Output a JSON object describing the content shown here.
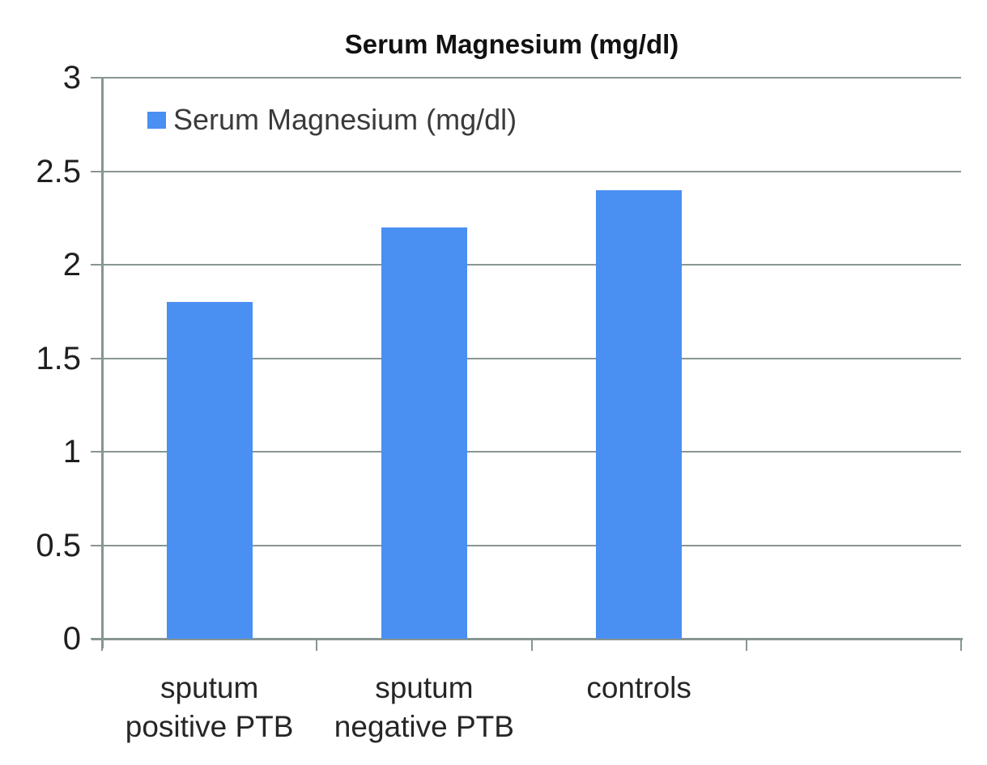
{
  "title": "Serum Magnesium (mg/dl)",
  "legend": {
    "label": "Serum Magnesium (mg/dl)",
    "swatch_color": "#4a8ff2",
    "swatch_icon": "square-swatch-icon"
  },
  "colors": {
    "bar": "#4a8ff2",
    "gridline": "#879693",
    "axis": "#879693",
    "label_text": "#262626",
    "title_text": "#111111",
    "background": "#ffffff"
  },
  "chart_data": {
    "type": "bar",
    "title": "Serum Magnesium (mg/dl)",
    "categories": [
      "sputum positive PTB",
      "sputum negative PTB",
      "controls"
    ],
    "series": [
      {
        "name": "Serum Magnesium (mg/dl)",
        "values": [
          1.8,
          2.2,
          2.4
        ]
      }
    ],
    "values": [
      1.8,
      2.2,
      2.4
    ],
    "xlabel": "",
    "ylabel": "",
    "ylim": [
      0,
      3
    ],
    "yticks": [
      0,
      0.5,
      1,
      1.5,
      2,
      2.5,
      3
    ],
    "ytick_labels": [
      "0",
      "0.5",
      "1",
      "1.5",
      "2",
      "2.5",
      "3"
    ],
    "grid": "horizontal-on",
    "legend_position": "inside-top-left",
    "num_category_slots": 4,
    "bar_color": "#4a8ff2"
  }
}
